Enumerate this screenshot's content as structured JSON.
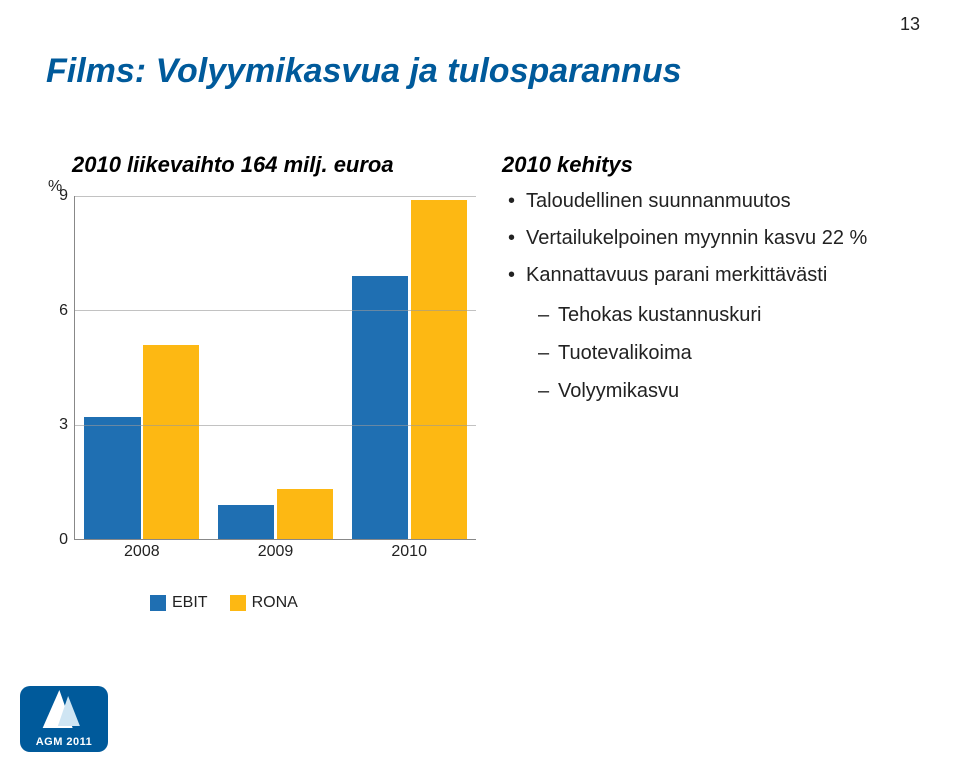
{
  "page_number": "13",
  "title": "Films: Volyymikasvua ja tulosparannus",
  "subtitle": "2010 liikevaihto 164 milj. euroa",
  "right": {
    "title": "2010 kehitys",
    "bullets": [
      "Taloudellinen suunnanmuutos",
      "Vertailukelpoinen myynnin kasvu 22 %",
      "Kannattavuus parani merkittävästi"
    ],
    "sub_bullets": [
      "Tehokas kustannuskuri",
      "Tuotevalikoima",
      "Volyymikasvu"
    ]
  },
  "footer_label": "AGM 2011",
  "chart": {
    "type": "grouped-bar",
    "y_axis_title": "%",
    "ylim": [
      0,
      9
    ],
    "yticks": [
      0,
      3,
      6,
      9
    ],
    "categories": [
      "2008",
      "2009",
      "2010"
    ],
    "series": [
      {
        "name": "EBIT",
        "color": "#1f6fb2",
        "values": [
          3.2,
          0.9,
          6.9
        ]
      },
      {
        "name": "RONA",
        "color": "#fdb813",
        "values": [
          5.1,
          1.3,
          8.9
        ]
      }
    ],
    "gridline_color": "#999999",
    "axis_color": "#888888",
    "background_color": "#ffffff",
    "label_fontsize": 16,
    "bar_group_width": 0.86
  }
}
